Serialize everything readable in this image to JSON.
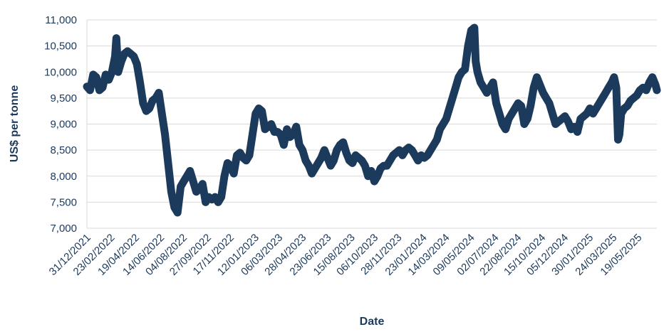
{
  "chart_data": {
    "type": "line",
    "xlabel": "Date",
    "ylabel": "US$ per tonne",
    "ylim": [
      7000,
      11000
    ],
    "yticks": [
      7000,
      7500,
      8000,
      8500,
      9000,
      9500,
      10000,
      10500,
      11000
    ],
    "ytick_labels": [
      "7,000",
      "7,500",
      "8,000",
      "8,500",
      "9,000",
      "9,500",
      "10,000",
      "10,500",
      "11,000"
    ],
    "xlim": [
      "2021-12-31",
      "2025-06-30"
    ],
    "xtick_labels": [
      "31/12/2021",
      "23/02/2022",
      "19/04/2022",
      "14/06/2022",
      "04/08/2022",
      "27/09/2022",
      "17/11/2022",
      "12/01/2023",
      "06/03/2023",
      "28/04/2023",
      "23/06/2023",
      "15/08/2023",
      "06/10/2023",
      "28/11/2023",
      "23/01/2024",
      "14/03/2024",
      "09/05/2024",
      "02/07/2024",
      "22/08/2024",
      "15/10/2024",
      "05/12/2024",
      "30/01/2025",
      "24/03/2025",
      "19/05/2025"
    ],
    "grid": "horizontal",
    "legend": "none",
    "line_color": "#1b3a5c",
    "grid_color": "#d9d9d9",
    "series": [
      {
        "x": [
          "2021-12-31",
          "2022-01-07",
          "2022-01-14",
          "2022-01-21",
          "2022-01-28",
          "2022-02-04",
          "2022-02-11",
          "2022-02-18",
          "2022-02-25",
          "2022-03-04",
          "2022-03-07",
          "2022-03-11",
          "2022-03-18",
          "2022-03-25",
          "2022-04-01",
          "2022-04-08",
          "2022-04-15",
          "2022-04-22",
          "2022-04-29",
          "2022-05-06",
          "2022-05-13",
          "2022-05-20",
          "2022-05-27",
          "2022-06-03",
          "2022-06-10",
          "2022-06-17",
          "2022-06-24",
          "2022-07-01",
          "2022-07-08",
          "2022-07-15",
          "2022-07-22",
          "2022-07-29",
          "2022-08-05",
          "2022-08-12",
          "2022-08-19",
          "2022-08-26",
          "2022-09-02",
          "2022-09-09",
          "2022-09-16",
          "2022-09-23",
          "2022-09-30",
          "2022-10-07",
          "2022-10-14",
          "2022-10-21",
          "2022-10-28",
          "2022-11-04",
          "2022-11-11",
          "2022-11-18",
          "2022-11-25",
          "2022-12-02",
          "2022-12-09",
          "2022-12-16",
          "2022-12-23",
          "2022-12-30",
          "2023-01-06",
          "2023-01-13",
          "2023-01-20",
          "2023-01-27",
          "2023-02-03",
          "2023-02-10",
          "2023-02-17",
          "2023-02-24",
          "2023-03-03",
          "2023-03-10",
          "2023-03-17",
          "2023-03-24",
          "2023-03-31",
          "2023-04-07",
          "2023-04-14",
          "2023-04-21",
          "2023-04-28",
          "2023-05-05",
          "2023-05-12",
          "2023-05-19",
          "2023-05-26",
          "2023-06-02",
          "2023-06-09",
          "2023-06-16",
          "2023-06-23",
          "2023-06-30",
          "2023-07-07",
          "2023-07-14",
          "2023-07-21",
          "2023-07-28",
          "2023-08-04",
          "2023-08-11",
          "2023-08-18",
          "2023-08-25",
          "2023-09-01",
          "2023-09-08",
          "2023-09-15",
          "2023-09-22",
          "2023-09-29",
          "2023-10-06",
          "2023-10-13",
          "2023-10-20",
          "2023-10-27",
          "2023-11-03",
          "2023-11-10",
          "2023-11-17",
          "2023-11-24",
          "2023-12-01",
          "2023-12-08",
          "2023-12-15",
          "2023-12-22",
          "2023-12-29",
          "2024-01-05",
          "2024-01-12",
          "2024-01-19",
          "2024-01-26",
          "2024-02-02",
          "2024-02-09",
          "2024-02-16",
          "2024-02-23",
          "2024-03-01",
          "2024-03-08",
          "2024-03-15",
          "2024-03-22",
          "2024-03-29",
          "2024-04-05",
          "2024-04-12",
          "2024-04-19",
          "2024-04-26",
          "2024-05-03",
          "2024-05-10",
          "2024-05-17",
          "2024-05-20",
          "2024-05-24",
          "2024-05-31",
          "2024-06-07",
          "2024-06-14",
          "2024-06-21",
          "2024-06-28",
          "2024-07-05",
          "2024-07-12",
          "2024-07-19",
          "2024-07-26",
          "2024-08-02",
          "2024-08-09",
          "2024-08-16",
          "2024-08-23",
          "2024-08-30",
          "2024-09-06",
          "2024-09-13",
          "2024-09-20",
          "2024-09-27",
          "2024-10-04",
          "2024-10-11",
          "2024-10-18",
          "2024-10-25",
          "2024-11-01",
          "2024-11-08",
          "2024-11-15",
          "2024-11-22",
          "2024-11-29",
          "2024-12-06",
          "2024-12-13",
          "2024-12-20",
          "2024-12-27",
          "2025-01-03",
          "2025-01-10",
          "2025-01-17",
          "2025-01-24",
          "2025-01-31",
          "2025-02-07",
          "2025-02-14",
          "2025-02-21",
          "2025-02-28",
          "2025-03-07",
          "2025-03-14",
          "2025-03-21",
          "2025-03-26",
          "2025-03-31",
          "2025-04-04",
          "2025-04-07",
          "2025-04-11",
          "2025-04-18",
          "2025-04-25",
          "2025-05-02",
          "2025-05-09",
          "2025-05-16",
          "2025-05-23",
          "2025-05-30",
          "2025-06-06",
          "2025-06-13",
          "2025-06-20",
          "2025-06-27",
          "2025-06-30"
        ],
        "values": [
          9720,
          9650,
          9950,
          9900,
          9650,
          9700,
          9950,
          9850,
          10000,
          10300,
          10650,
          10000,
          10200,
          10350,
          10400,
          10350,
          10300,
          10150,
          9800,
          9400,
          9250,
          9300,
          9450,
          9500,
          9600,
          9200,
          8800,
          8250,
          7700,
          7400,
          7300,
          7800,
          7900,
          8000,
          8100,
          7900,
          7700,
          7750,
          7850,
          7500,
          7600,
          7550,
          7600,
          7500,
          7600,
          8000,
          8250,
          8200,
          8050,
          8400,
          8450,
          8350,
          8300,
          8400,
          8800,
          9200,
          9300,
          9250,
          8900,
          8950,
          9000,
          8850,
          8850,
          8800,
          8600,
          8900,
          8750,
          8800,
          8950,
          8600,
          8500,
          8300,
          8200,
          8050,
          8150,
          8250,
          8350,
          8500,
          8350,
          8200,
          8300,
          8500,
          8600,
          8650,
          8450,
          8300,
          8250,
          8400,
          8350,
          8300,
          8200,
          8000,
          8100,
          7900,
          8000,
          8150,
          8200,
          8200,
          8300,
          8400,
          8450,
          8500,
          8400,
          8500,
          8550,
          8500,
          8400,
          8300,
          8400,
          8350,
          8400,
          8500,
          8600,
          8700,
          8900,
          9000,
          9100,
          9300,
          9500,
          9700,
          9900,
          10000,
          10050,
          10500,
          10800,
          10850,
          10200,
          10000,
          9800,
          9700,
          9600,
          9700,
          9800,
          9400,
          9200,
          9000,
          8900,
          9100,
          9200,
          9300,
          9400,
          9350,
          9000,
          9100,
          9350,
          9700,
          9900,
          9750,
          9600,
          9500,
          9400,
          9200,
          9000,
          9050,
          9100,
          9150,
          9050,
          8900,
          8950,
          8850,
          9100,
          9150,
          9200,
          9300,
          9200,
          9300,
          9400,
          9500,
          9600,
          9700,
          9800,
          9900,
          9700,
          8700,
          8800,
          9200,
          9300,
          9350,
          9450,
          9500,
          9550,
          9650,
          9700,
          9650,
          9800,
          9900,
          9750,
          9650
        ]
      }
    ]
  }
}
